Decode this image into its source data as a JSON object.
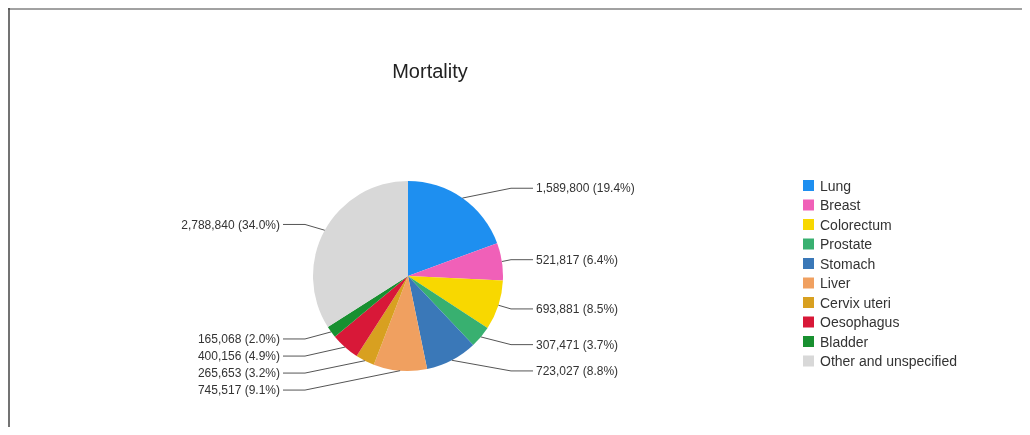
{
  "chart_data": {
    "type": "pie",
    "title": "Mortality",
    "categories": [
      "Lung",
      "Breast",
      "Colorectum",
      "Prostate",
      "Stomach",
      "Liver",
      "Cervix uteri",
      "Oesophagus",
      "Bladder",
      "Other and unspecified"
    ],
    "values": [
      1589800,
      521817,
      693881,
      307471,
      723027,
      745517,
      265653,
      400156,
      165068,
      2788840
    ],
    "colors": [
      "#1e8ff0",
      "#f060b8",
      "#f8d800",
      "#38b070",
      "#3a78b8",
      "#f0a060",
      "#d8a020",
      "#d81838",
      "#189030",
      "#d8d8d8"
    ],
    "value_labels": [
      "1,589,800 (19.4%)",
      "521,817 (6.4%)",
      "693,881 (8.5%)",
      "307,471 (3.7%)",
      "723,027 (8.8%)",
      "745,517 (9.1%)",
      "265,653 (3.2%)",
      "400,156 (4.9%)",
      "165,068 (2.0%)",
      "2,788,840 (34.0%)"
    ],
    "legend": "right"
  }
}
